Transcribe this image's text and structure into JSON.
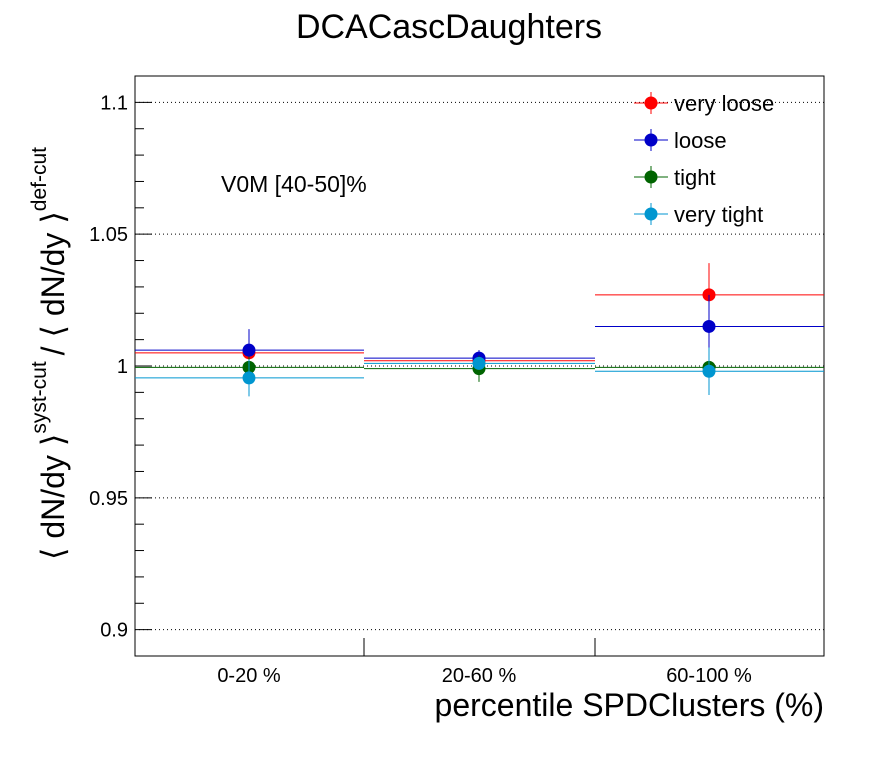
{
  "chart_data": {
    "type": "scatter",
    "title": "DCACascDaughters",
    "xlabel": "percentile SPDClusters (%)",
    "ylabel": {
      "open": "⟨ dN/dy ⟩",
      "sup_num": "syst-cut",
      "slash": "/ ⟨ dN/dy ⟩",
      "sup_den": "def-cut"
    },
    "ylim": [
      0.89,
      1.11
    ],
    "yticks": [
      {
        "value": 0.9,
        "label": "0.9"
      },
      {
        "value": 0.95,
        "label": "0.95"
      },
      {
        "value": 1.0,
        "label": "1"
      },
      {
        "value": 1.05,
        "label": "1.05"
      },
      {
        "value": 1.1,
        "label": "1.1"
      }
    ],
    "grid": "horizontal dotted at major y ticks",
    "categories": [
      "0-20 %",
      "20-60 %",
      "60-100 %"
    ],
    "annotation": "V0M [40-50]%",
    "legend_position": "top-right",
    "series": [
      {
        "name": "very loose",
        "color": "#ff0000",
        "values": [
          1.005,
          1.002,
          1.027
        ],
        "errors": [
          0.007,
          0.003,
          0.012
        ]
      },
      {
        "name": "loose",
        "color": "#0000c8",
        "values": [
          1.006,
          1.003,
          1.015
        ],
        "errors": [
          0.008,
          0.003,
          0.012
        ]
      },
      {
        "name": "tight",
        "color": "#006400",
        "values": [
          0.9995,
          0.999,
          0.9995
        ],
        "errors": [
          0.004,
          0.005,
          0.002
        ]
      },
      {
        "name": "very tight",
        "color": "#0096d0",
        "values": [
          0.9955,
          1.001,
          0.998
        ],
        "errors": [
          0.007,
          0.002,
          0.009
        ]
      }
    ]
  }
}
